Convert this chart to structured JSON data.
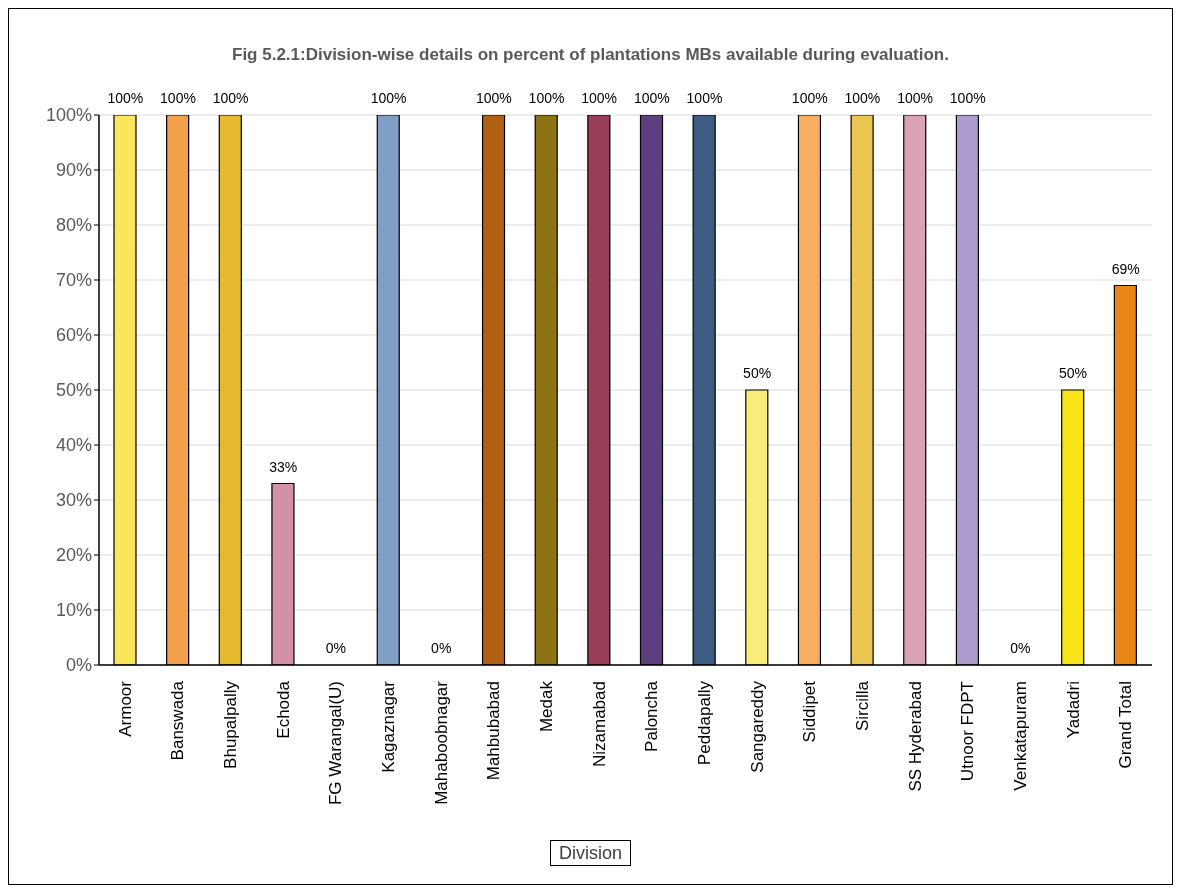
{
  "chart_data": {
    "type": "bar",
    "title": "Fig 5.2.1:Division-wise details on percent of plantations MBs available during evaluation.",
    "xlabel": "Division",
    "categories": [
      "Armoor",
      "Banswada",
      "Bhupalpally",
      "Echoda",
      "FG Warangal(U)",
      "Kagaznagar",
      "Mahaboobnagar",
      "Mahbubabad",
      "Medak",
      "Nizamabad",
      "Paloncha",
      "Peddapally",
      "Sangareddy",
      "Siddipet",
      "Sircilla",
      "SS Hyderabad",
      "Utnoor FDPT",
      "Venkatapuram",
      "Yadadri",
      "Grand Total"
    ],
    "values": [
      100,
      100,
      100,
      33,
      0,
      100,
      0,
      100,
      100,
      100,
      100,
      100,
      50,
      100,
      100,
      100,
      100,
      0,
      50,
      69
    ],
    "value_labels": [
      "100%",
      "100%",
      "100%",
      "33%",
      "0%",
      "100%",
      "0%",
      "100%",
      "100%",
      "100%",
      "100%",
      "100%",
      "50%",
      "100%",
      "100%",
      "100%",
      "100%",
      "0%",
      "50%",
      "69%"
    ],
    "colors": [
      "#f9e65a",
      "#f2a04c",
      "#e5ba2e",
      "#d291a8",
      "#a5a5a5",
      "#7f9fc4",
      "#a5a5a5",
      "#b06012",
      "#8e7316",
      "#983f58",
      "#5c3f7e",
      "#3d5c84",
      "#f9ec7a",
      "#f7ae63",
      "#ebc552",
      "#d9a3b3",
      "#ac9bcc",
      "#a5a5a5",
      "#f7e51a",
      "#e88616"
    ],
    "ylim": [
      0,
      100
    ],
    "yticks": [
      {
        "value": 0,
        "label": "0%"
      },
      {
        "value": 10,
        "label": "10%"
      },
      {
        "value": 20,
        "label": "20%"
      },
      {
        "value": 30,
        "label": "30%"
      },
      {
        "value": 40,
        "label": "40%"
      },
      {
        "value": 50,
        "label": "50%"
      },
      {
        "value": 60,
        "label": "60%"
      },
      {
        "value": 70,
        "label": "70%"
      },
      {
        "value": 80,
        "label": "80%"
      },
      {
        "value": 90,
        "label": "90%"
      },
      {
        "value": 100,
        "label": "100%"
      }
    ],
    "grid": "y"
  }
}
